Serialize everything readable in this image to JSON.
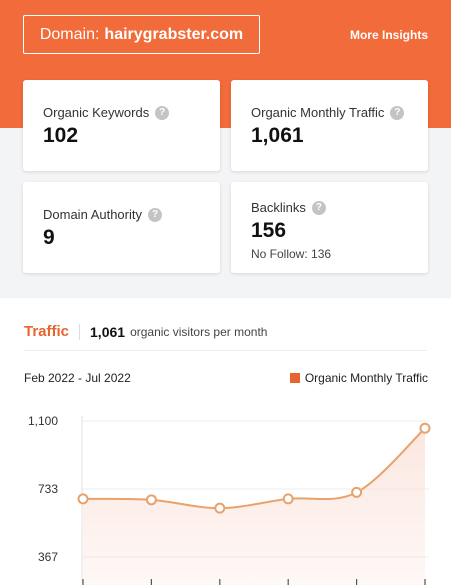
{
  "header": {
    "domain_label": "Domain:",
    "domain_value": "hairygrabster.com",
    "more_insights": "More Insights"
  },
  "cards": {
    "organic_keywords": {
      "label": "Organic Keywords",
      "value": "102"
    },
    "organic_traffic": {
      "label": "Organic Monthly Traffic",
      "value": "1,061"
    },
    "domain_authority": {
      "label": "Domain Authority",
      "value": "9"
    },
    "backlinks": {
      "label": "Backlinks",
      "value": "156",
      "sub": "No Follow: 136"
    }
  },
  "help_glyph": "?",
  "traffic": {
    "title": "Traffic",
    "visitors": "1,061",
    "visitors_text": "organic visitors per month",
    "range": "Feb 2022 - Jul 2022",
    "legend": "Organic Monthly Traffic"
  },
  "chart_data": {
    "type": "area",
    "y_ticks": [
      "1,100",
      "733",
      "367"
    ],
    "ylim": [
      0,
      1100
    ],
    "series": [
      {
        "name": "Organic Monthly Traffic",
        "values": [
          680,
          675,
          630,
          680,
          715,
          1061
        ]
      }
    ],
    "color": "#e8a26c",
    "fill": "#fbe4dc"
  }
}
